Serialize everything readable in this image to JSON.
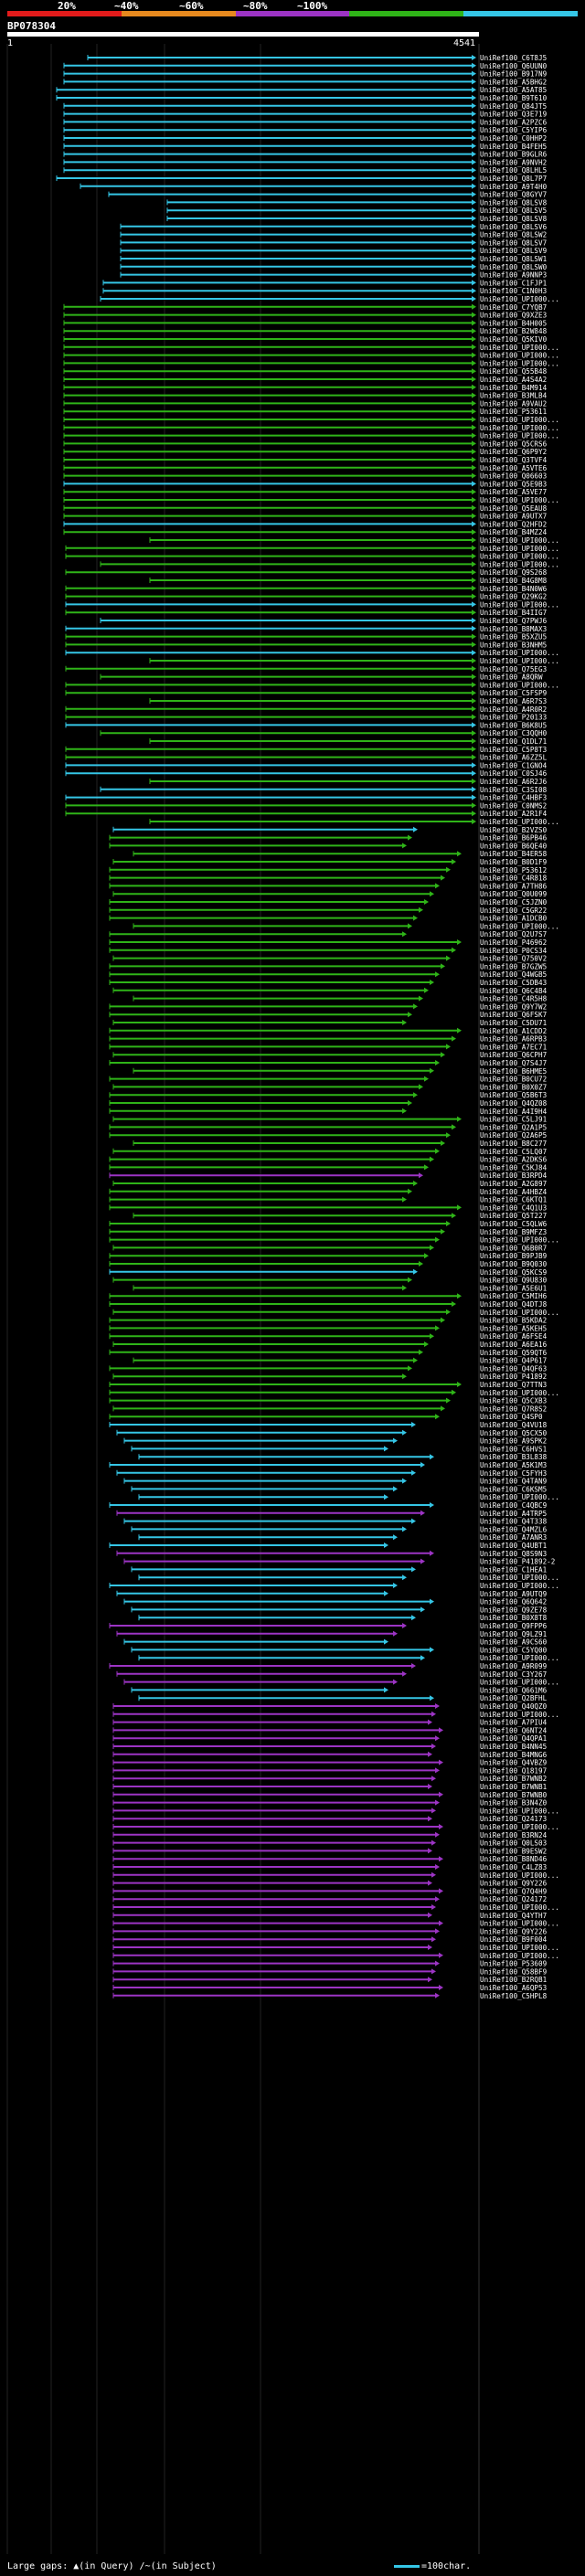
{
  "legend": {
    "labels": [
      "20%",
      "~40%",
      "~60%",
      "~80%",
      "~100%"
    ],
    "colors": [
      "#e21b1b",
      "#e6891e",
      "#9c34c4",
      "#2fb418",
      "#35c6e6"
    ]
  },
  "query": {
    "title": "BP078304",
    "start": "1",
    "end": "4541"
  },
  "hit_ids": [
    "UniRef100_C6T8J5",
    "UniRef100_Q6UUN0",
    "UniRef100_B917N9",
    "UniRef100_A5BHG2",
    "UniRef100_A5AT85",
    "UniRef100_B9T610",
    "UniRef100_Q84JT5",
    "UniRef100_Q3E719",
    "UniRef100_A2PZC6",
    "UniRef100_C5YIP6",
    "UniRef100_C0HHP2",
    "UniRef100_B4FEH5",
    "UniRef100_B9GLR6",
    "UniRef100_A9NVH2",
    "UniRef100_Q8LHL5",
    "UniRef100_Q8L7P7",
    "UniRef100_A9T4H0",
    "UniRef100_Q8GYV7",
    "UniRef100_Q8LSV8",
    "UniRef100_Q8LSV5",
    "UniRef100_Q8LSV8",
    "UniRef100_Q8LSV6",
    "UniRef100_Q8LSW2",
    "UniRef100_Q8LSV7",
    "UniRef100_Q8LSV9",
    "UniRef100_Q8LSW1",
    "UniRef100_Q8LSW0",
    "UniRef100_A9NNP3",
    "UniRef100_C1FJP1",
    "UniRef100_C1N0H3",
    "UniRef100_UPI000...",
    "UniRef100_C7YQB7",
    "UniRef100_Q9XZE3",
    "UniRef100_B4H005",
    "UniRef100_B2W848",
    "UniRef100_Q5KIV0",
    "UniRef100_UPI000...",
    "UniRef100_UPI000...",
    "UniRef100_UPI000...",
    "UniRef100_Q55B48",
    "UniRef100_A4S4A2",
    "UniRef100_B4M914",
    "UniRef100_B3MLB4",
    "UniRef100_A9VAU2",
    "UniRef100_P53611",
    "UniRef100_UPI000...",
    "UniRef100_UPI000...",
    "UniRef100_UPI000...",
    "UniRef100_Q5CRS6",
    "UniRef100_Q6P9Y2",
    "UniRef100_Q3TVF4",
    "UniRef100_A5VTE6",
    "UniRef100_Q06603",
    "UniRef100_Q5E9B3",
    "UniRef100_A5VE77",
    "UniRef100_UPI000...",
    "UniRef100_Q5EAU8",
    "UniRef100_A9UTX7",
    "UniRef100_Q2HFD2",
    "UniRef100_B4MZ24",
    "UniRef100_UPI000...",
    "UniRef100_UPI000...",
    "UniRef100_UPI000...",
    "UniRef100_UPI000...",
    "UniRef100_Q9S268",
    "UniRef100_B4G8M8",
    "UniRef100_B4N0W6",
    "UniRef100_Q29KG2",
    "UniRef100_UPI000...",
    "UniRef100_B4IIG7",
    "UniRef100_Q7PWJ6",
    "UniRef100_B8MAX3",
    "UniRef100_B5XZU5",
    "UniRef100_B3NHM5",
    "UniRef100_UPI000...",
    "UniRef100_UPI000...",
    "UniRef100_Q75EG3",
    "UniRef100_A8QRW",
    "UniRef100_UPI000...",
    "UniRef100_C5FSP9",
    "UniRef100_A6R7S3",
    "UniRef100_A4R0R2",
    "UniRef100_P20133",
    "UniRef100_B6K8U5",
    "UniRef100_C3QQH0",
    "UniRef100_Q1DL71",
    "UniRef100_C5P8T3",
    "UniRef100_A6ZZ5L",
    "UniRef100_C1GNO4",
    "UniRef100_C0SJ46",
    "UniRef100_A6R2J6",
    "UniRef100_C3SI08",
    "UniRef100_C4HBF3",
    "UniRef100_C0NMS2",
    "UniRef100_A2R1F4",
    "UniRef100_UPI000...",
    "UniRef100_B2VZS0",
    "UniRef100_B6PB46",
    "UniRef100_B6QE40",
    "UniRef100_B4ER58",
    "UniRef100_B0D1F9",
    "UniRef100_P53612",
    "UniRef100_C4R818",
    "UniRef100_A7TH86",
    "UniRef100_Q0U099",
    "UniRef100_C5JZN0",
    "UniRef100_C5GR22",
    "UniRef100_A1DCB0",
    "UniRef100_UPI000...",
    "UniRef100_Q2U7S7",
    "UniRef100_P46962",
    "UniRef100_P0CS34",
    "UniRef100_Q750V2",
    "UniRef100_B7GZW5",
    "UniRef100_Q4WGB5",
    "UniRef100_C5DB43",
    "UniRef100_Q6C4B4",
    "UniRef100_C4R5H8",
    "UniRef100_Q9Y7W2",
    "UniRef100_Q6FSK7",
    "UniRef100_C5DU71",
    "UniRef100_A1CDD2",
    "UniRef100_A6RPB3",
    "UniRef100_A7EC71",
    "UniRef100_Q6CPH7",
    "UniRef100_Q7S4J7",
    "UniRef100_B6HME5",
    "UniRef100_B0CU72",
    "UniRef100_B0X0Z7",
    "UniRef100_Q5B6T3",
    "UniRef100_Q4QZ08",
    "UniRef100_A4I9H4",
    "UniRef100_C5LJ91",
    "UniRef100_Q2A1P5",
    "UniRef100_Q2A6P5",
    "UniRef100_B8C277",
    "UniRef100_C5LQ07",
    "UniRef100_A2DKS6",
    "UniRef100_C5KJ84",
    "UniRef100_B3RPD4",
    "UniRef100_A2G897",
    "UniRef100_A4HBZ4",
    "UniRef100_C6KTQ1",
    "UniRef100_C4Q1U3",
    "UniRef100_Q5T227",
    "UniRef100_C5QLW6",
    "UniRef100_B9MFZ3",
    "UniRef100_UPI000...",
    "UniRef100_Q6B0R7",
    "UniRef100_B9PJB9",
    "UniRef100_B9Q030",
    "UniRef100_Q5KCS9",
    "UniRef100_Q9U830",
    "UniRef100_A5E6U1",
    "UniRef100_C5MIH6",
    "UniRef100_Q4DTJ8",
    "UniRef100_UPI000...",
    "UniRef100_B5KDA2",
    "UniRef100_A5KEH5",
    "UniRef100_A6FSE4",
    "UniRef100_A6EA16",
    "UniRef100_Q59QT6",
    "UniRef100_Q4P617",
    "UniRef100_Q4QF63",
    "UniRef100_P41892",
    "UniRef100_Q7TTN3",
    "UniRef100_UPI000...",
    "UniRef100_Q5CXB3",
    "UniRef100_Q7R8S2",
    "UniRef100_Q4SP0",
    "UniRef100_Q4VU18",
    "UniRef100_Q5CX50",
    "UniRef100_A9SPK2",
    "UniRef100_C6HVS1",
    "UniRef100_B3L838",
    "UniRef100_A5K1M3",
    "UniRef100_C5FYH3",
    "UniRef100_Q4TAN9",
    "UniRef100_C6KSM5",
    "UniRef100_UPI000...",
    "UniRef100_C4QBC9",
    "UniRef100_A4TRP5",
    "UniRef100_Q4T338",
    "UniRef100_Q4MZL6",
    "UniRef100_A7ANR3",
    "UniRef100_Q4UBT1",
    "UniRef100_Q8S9N3",
    "UniRef100_P41892-2",
    "UniRef100_C1HEA1",
    "UniRef100_UPI000...",
    "UniRef100_UPI000...",
    "UniRef100_A9UTQ9",
    "UniRef100_Q6Q642",
    "UniRef100_Q9ZE78",
    "UniRef100_B0X8T8",
    "UniRef100_Q9FPP6",
    "UniRef100_Q9LZ91",
    "UniRef100_A9CS60",
    "UniRef100_C5YQ00",
    "UniRef100_UPI000...",
    "UniRef100_A9R099",
    "UniRef100_C3Y267",
    "UniRef100_UPI000...",
    "UniRef100_Q661M6",
    "UniRef100_Q2BFHL",
    "UniRef100_Q40QZ0",
    "UniRef100_UPI000...",
    "UniRef100_A7PIU4",
    "UniRef100_Q6NT24",
    "UniRef100_Q4QPA1",
    "UniRef100_B4NN45",
    "UniRef100_B4MNG6",
    "UniRef100_Q4VBZ9",
    "UniRef100_Q18197",
    "UniRef100_B7WNB2",
    "UniRef100_B7WNB1",
    "UniRef100_B7WNB0",
    "UniRef100_B3N4Z0",
    "UniRef100_UPI000...",
    "UniRef100_Q24173",
    "UniRef100_UPI000...",
    "UniRef100_B3RN24",
    "UniRef100_Q0LS03",
    "UniRef100_B9ESW2",
    "UniRef100_B8ND46",
    "UniRef100_C4LZ83",
    "UniRef100_UPI000...",
    "UniRef100_Q9Y226",
    "UniRef100_Q7Q4H9",
    "UniRef100_Q24172",
    "UniRef100_UPI000...",
    "UniRef100_Q4YTH7",
    "UniRef100_UPI000...",
    "UniRef100_Q9Y226",
    "UniRef100_B9F004",
    "UniRef100_UPI000...",
    "UniRef100_UPI000...",
    "UniRef100_P53609",
    "UniRef100_Q58BF9",
    "UniRef100_B2RQB1",
    "UniRef100_A6QP53",
    "UniRef100_C5HPL8"
  ],
  "footer": {
    "gaps_text": "Large gaps: ",
    "gap_in_query": "(in Query)",
    "gap_in_subject": "(in Subject)",
    "scale_text": "=100char."
  }
}
